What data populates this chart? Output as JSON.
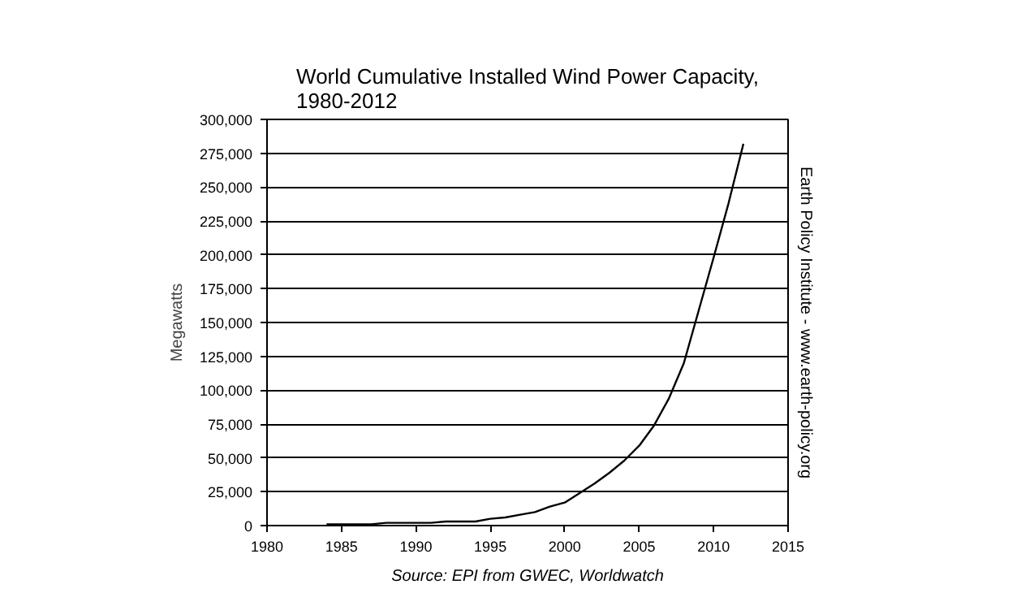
{
  "chart_data": {
    "type": "line",
    "title": "World Cumulative Installed Wind Power Capacity,\n1980-2012",
    "ylabel": "Megawatts",
    "annotations": [
      "Source: EPI from GWEC, Worldwatch",
      "Earth Policy Institute - www.earth-policy.org"
    ],
    "x": [
      1984,
      1985,
      1986,
      1987,
      1988,
      1989,
      1990,
      1991,
      1992,
      1993,
      1994,
      1995,
      1996,
      1997,
      1998,
      1999,
      2000,
      2001,
      2002,
      2003,
      2004,
      2005,
      2006,
      2007,
      2008,
      2009,
      2010,
      2011,
      2012
    ],
    "series": [
      {
        "color": "#000000",
        "values": [
          1000,
          1000,
          1000,
          1000,
          2000,
          2000,
          2000,
          2000,
          3000,
          3000,
          3000,
          5000,
          6000,
          8000,
          10000,
          14000,
          17000,
          24000,
          31000,
          39000,
          48000,
          59000,
          74000,
          94000,
          120000,
          159000,
          198000,
          238000,
          282000
        ]
      }
    ],
    "xlim": [
      1980,
      2015
    ],
    "xticks": [
      1980,
      1985,
      1990,
      1995,
      2000,
      2005,
      2010,
      2015
    ],
    "ylim": [
      0,
      300000
    ],
    "yticks": [
      {
        "value": 0,
        "label": "0"
      },
      {
        "value": 25000,
        "label": "25,000"
      },
      {
        "value": 50000,
        "label": "50,000"
      },
      {
        "value": 75000,
        "label": "75,000"
      },
      {
        "value": 100000,
        "label": "100,000"
      },
      {
        "value": 125000,
        "label": "125,000"
      },
      {
        "value": 150000,
        "label": "150,000"
      },
      {
        "value": 175000,
        "label": "175,000"
      },
      {
        "value": 200000,
        "label": "200,000"
      },
      {
        "value": 225000,
        "label": "225,000"
      },
      {
        "value": 250000,
        "label": "250,000"
      },
      {
        "value": 275000,
        "label": "275,000"
      },
      {
        "value": 300000,
        "label": "300,000"
      }
    ],
    "grid": "y",
    "marker": "none",
    "line_style": "solid"
  }
}
